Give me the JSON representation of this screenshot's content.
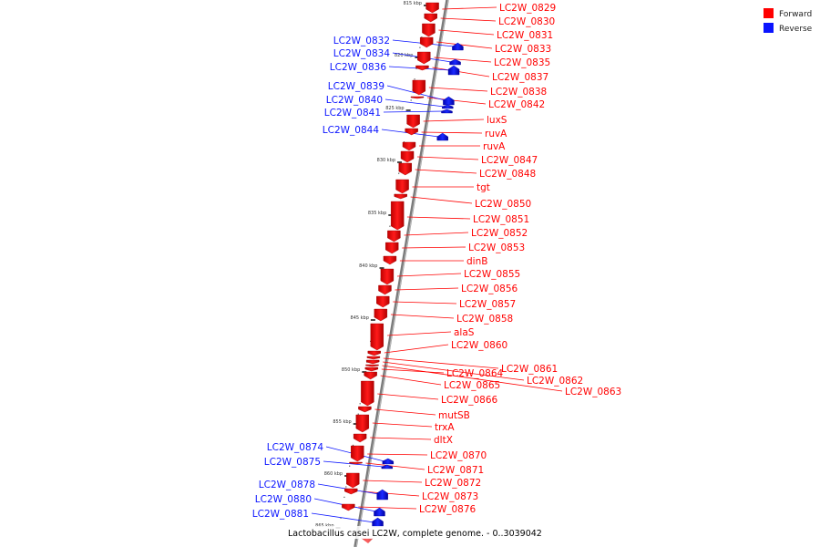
{
  "legend": {
    "forward": {
      "label": "Forward",
      "color": "#ff0000"
    },
    "reverse": {
      "label": "Reverse",
      "color": "#0a14ff"
    }
  },
  "caption": "Lactobacillus casei LC2W, complete genome. - 0..3039042",
  "ruler": {
    "ticks": [
      "815 kbp",
      "820 kbp",
      "825 kbp",
      "830 kbp",
      "835 kbp",
      "840 kbp",
      "845 kbp",
      "850 kbp",
      "855 kbp",
      "860 kbp",
      "865 kbp"
    ]
  },
  "forward_genes": [
    "LC2W_0829",
    "LC2W_0830",
    "LC2W_0831",
    "LC2W_0833",
    "LC2W_0835",
    "LC2W_0837",
    "LC2W_0838",
    "LC2W_0842",
    "luxS",
    "ruvA",
    "ruvA",
    "LC2W_0847",
    "LC2W_0848",
    "tgt",
    "LC2W_0850",
    "LC2W_0851",
    "LC2W_0852",
    "LC2W_0853",
    "dinB",
    "LC2W_0855",
    "LC2W_0856",
    "LC2W_0857",
    "LC2W_0858",
    "alaS",
    "LC2W_0860",
    "LC2W_0861",
    "LC2W_0862",
    "LC2W_0863",
    "LC2W_0864",
    "LC2W_0865",
    "LC2W_0866",
    "mutSB",
    "trxA",
    "dltX",
    "LC2W_0870",
    "LC2W_0871",
    "LC2W_0872",
    "LC2W_0873",
    "LC2W_0876"
  ],
  "reverse_genes": [
    "LC2W_0832",
    "LC2W_0834",
    "LC2W_0836",
    "LC2W_0839",
    "LC2W_0840",
    "LC2W_0841",
    "LC2W_0844",
    "LC2W_0874",
    "LC2W_0875",
    "LC2W_0878",
    "LC2W_0880",
    "LC2W_0881"
  ]
}
